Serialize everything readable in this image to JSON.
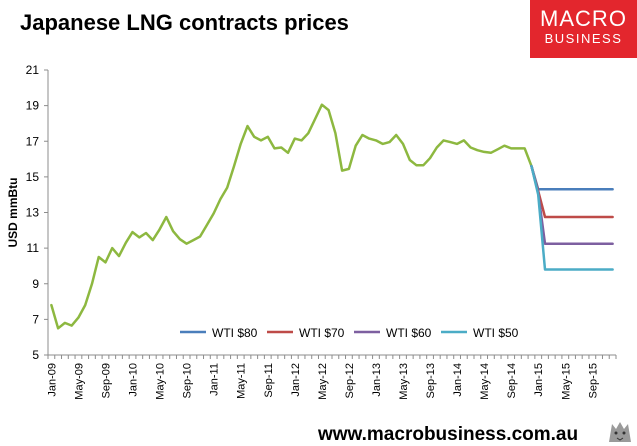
{
  "header": {
    "title": "Japanese LNG contracts prices"
  },
  "brand": {
    "line1": "MACRO",
    "line2": "BUSINESS",
    "color": "#e3262d"
  },
  "footer": {
    "url": "www.macrobusiness.com.au"
  },
  "chart_data": {
    "type": "line",
    "ylabel": "USD mmBtu",
    "ylim": [
      5,
      21
    ],
    "yticks": [
      5,
      7,
      9,
      11,
      13,
      15,
      17,
      19,
      21
    ],
    "xlim": [
      "2009-01",
      "2015-12"
    ],
    "x_tick_labels": [
      {
        "label": "Jan-09",
        "x": "2009-01"
      },
      {
        "label": "May-09",
        "x": "2009-05"
      },
      {
        "label": "Sep-09",
        "x": "2009-09"
      },
      {
        "label": "Jan-10",
        "x": "2010-01"
      },
      {
        "label": "May-10",
        "x": "2010-05"
      },
      {
        "label": "Sep-10",
        "x": "2010-09"
      },
      {
        "label": "Jan-11",
        "x": "2011-01"
      },
      {
        "label": "May-11",
        "x": "2011-05"
      },
      {
        "label": "Sep-11",
        "x": "2011-09"
      },
      {
        "label": "Jan-12",
        "x": "2012-01"
      },
      {
        "label": "May-12",
        "x": "2012-05"
      },
      {
        "label": "Sep-12",
        "x": "2012-09"
      },
      {
        "label": "Jan-13",
        "x": "2013-01"
      },
      {
        "label": "May-13",
        "x": "2013-05"
      },
      {
        "label": "Sep-13",
        "x": "2013-09"
      },
      {
        "label": "Jan-14",
        "x": "2014-01"
      },
      {
        "label": "May-14",
        "x": "2014-05"
      },
      {
        "label": "Sep-14",
        "x": "2014-09"
      },
      {
        "label": "Jan-15",
        "x": "2015-01"
      },
      {
        "label": "May-15",
        "x": "2015-05"
      },
      {
        "label": "Sep-15",
        "x": "2015-09"
      }
    ],
    "grid": false,
    "legend": "bottom-center",
    "series": [
      {
        "color": "#8db840",
        "points": [
          [
            "2009-01",
            7.8
          ],
          [
            "2009-02",
            6.5
          ],
          [
            "2009-03",
            6.8
          ],
          [
            "2009-04",
            6.65
          ],
          [
            "2009-05",
            7.1
          ],
          [
            "2009-06",
            7.8
          ],
          [
            "2009-07",
            9.0
          ],
          [
            "2009-08",
            10.5
          ],
          [
            "2009-09",
            10.2
          ],
          [
            "2009-10",
            11.0
          ],
          [
            "2009-11",
            10.55
          ],
          [
            "2009-12",
            11.3
          ],
          [
            "2010-01",
            11.9
          ],
          [
            "2010-02",
            11.6
          ],
          [
            "2010-03",
            11.85
          ],
          [
            "2010-04",
            11.45
          ],
          [
            "2010-05",
            12.05
          ],
          [
            "2010-06",
            12.75
          ],
          [
            "2010-07",
            11.95
          ],
          [
            "2010-08",
            11.5
          ],
          [
            "2010-09",
            11.25
          ],
          [
            "2010-10",
            11.45
          ],
          [
            "2010-11",
            11.65
          ],
          [
            "2010-12",
            12.3
          ],
          [
            "2011-01",
            12.95
          ],
          [
            "2011-02",
            13.75
          ],
          [
            "2011-03",
            14.4
          ],
          [
            "2011-04",
            15.6
          ],
          [
            "2011-05",
            16.85
          ],
          [
            "2011-06",
            17.85
          ],
          [
            "2011-07",
            17.25
          ],
          [
            "2011-08",
            17.05
          ],
          [
            "2011-09",
            17.25
          ],
          [
            "2011-10",
            16.6
          ],
          [
            "2011-11",
            16.65
          ],
          [
            "2011-12",
            16.35
          ],
          [
            "2012-01",
            17.15
          ],
          [
            "2012-02",
            17.05
          ],
          [
            "2012-03",
            17.45
          ],
          [
            "2012-04",
            18.25
          ],
          [
            "2012-05",
            19.05
          ],
          [
            "2012-06",
            18.75
          ],
          [
            "2012-07",
            17.45
          ],
          [
            "2012-08",
            15.35
          ],
          [
            "2012-09",
            15.45
          ],
          [
            "2012-10",
            16.75
          ],
          [
            "2012-11",
            17.35
          ],
          [
            "2012-12",
            17.15
          ],
          [
            "2013-01",
            17.05
          ],
          [
            "2013-02",
            16.85
          ],
          [
            "2013-03",
            16.95
          ],
          [
            "2013-04",
            17.35
          ],
          [
            "2013-05",
            16.85
          ],
          [
            "2013-06",
            15.95
          ],
          [
            "2013-07",
            15.65
          ],
          [
            "2013-08",
            15.65
          ],
          [
            "2013-09",
            16.05
          ],
          [
            "2013-10",
            16.65
          ],
          [
            "2013-11",
            17.05
          ],
          [
            "2013-12",
            16.95
          ],
          [
            "2014-01",
            16.85
          ],
          [
            "2014-02",
            17.05
          ],
          [
            "2014-03",
            16.65
          ],
          [
            "2014-04",
            16.5
          ],
          [
            "2014-05",
            16.4
          ],
          [
            "2014-06",
            16.35
          ],
          [
            "2014-07",
            16.55
          ],
          [
            "2014-08",
            16.75
          ],
          [
            "2014-09",
            16.6
          ],
          [
            "2014-10",
            16.6
          ],
          [
            "2014-11",
            16.6
          ],
          [
            "2014-12",
            15.6
          ]
        ]
      },
      {
        "name": "WTI $80",
        "color": "#4a7ebb",
        "points": [
          [
            "2014-12",
            15.6
          ],
          [
            "2015-01",
            14.3
          ],
          [
            "2015-12",
            14.3
          ]
        ]
      },
      {
        "name": "WTI $70",
        "color": "#be4b48",
        "points": [
          [
            "2014-12",
            15.6
          ],
          [
            "2015-01",
            14.2
          ],
          [
            "2015-02",
            12.75
          ],
          [
            "2015-12",
            12.75
          ]
        ]
      },
      {
        "name": "WTI $60",
        "color": "#7d5fa0",
        "points": [
          [
            "2014-12",
            15.6
          ],
          [
            "2015-01",
            14.1
          ],
          [
            "2015-02",
            11.25
          ],
          [
            "2015-12",
            11.25
          ]
        ]
      },
      {
        "name": "WTI $50",
        "color": "#4bacc6",
        "points": [
          [
            "2014-12",
            15.6
          ],
          [
            "2015-01",
            14.0
          ],
          [
            "2015-02",
            9.8
          ],
          [
            "2015-12",
            9.8
          ]
        ]
      }
    ]
  }
}
